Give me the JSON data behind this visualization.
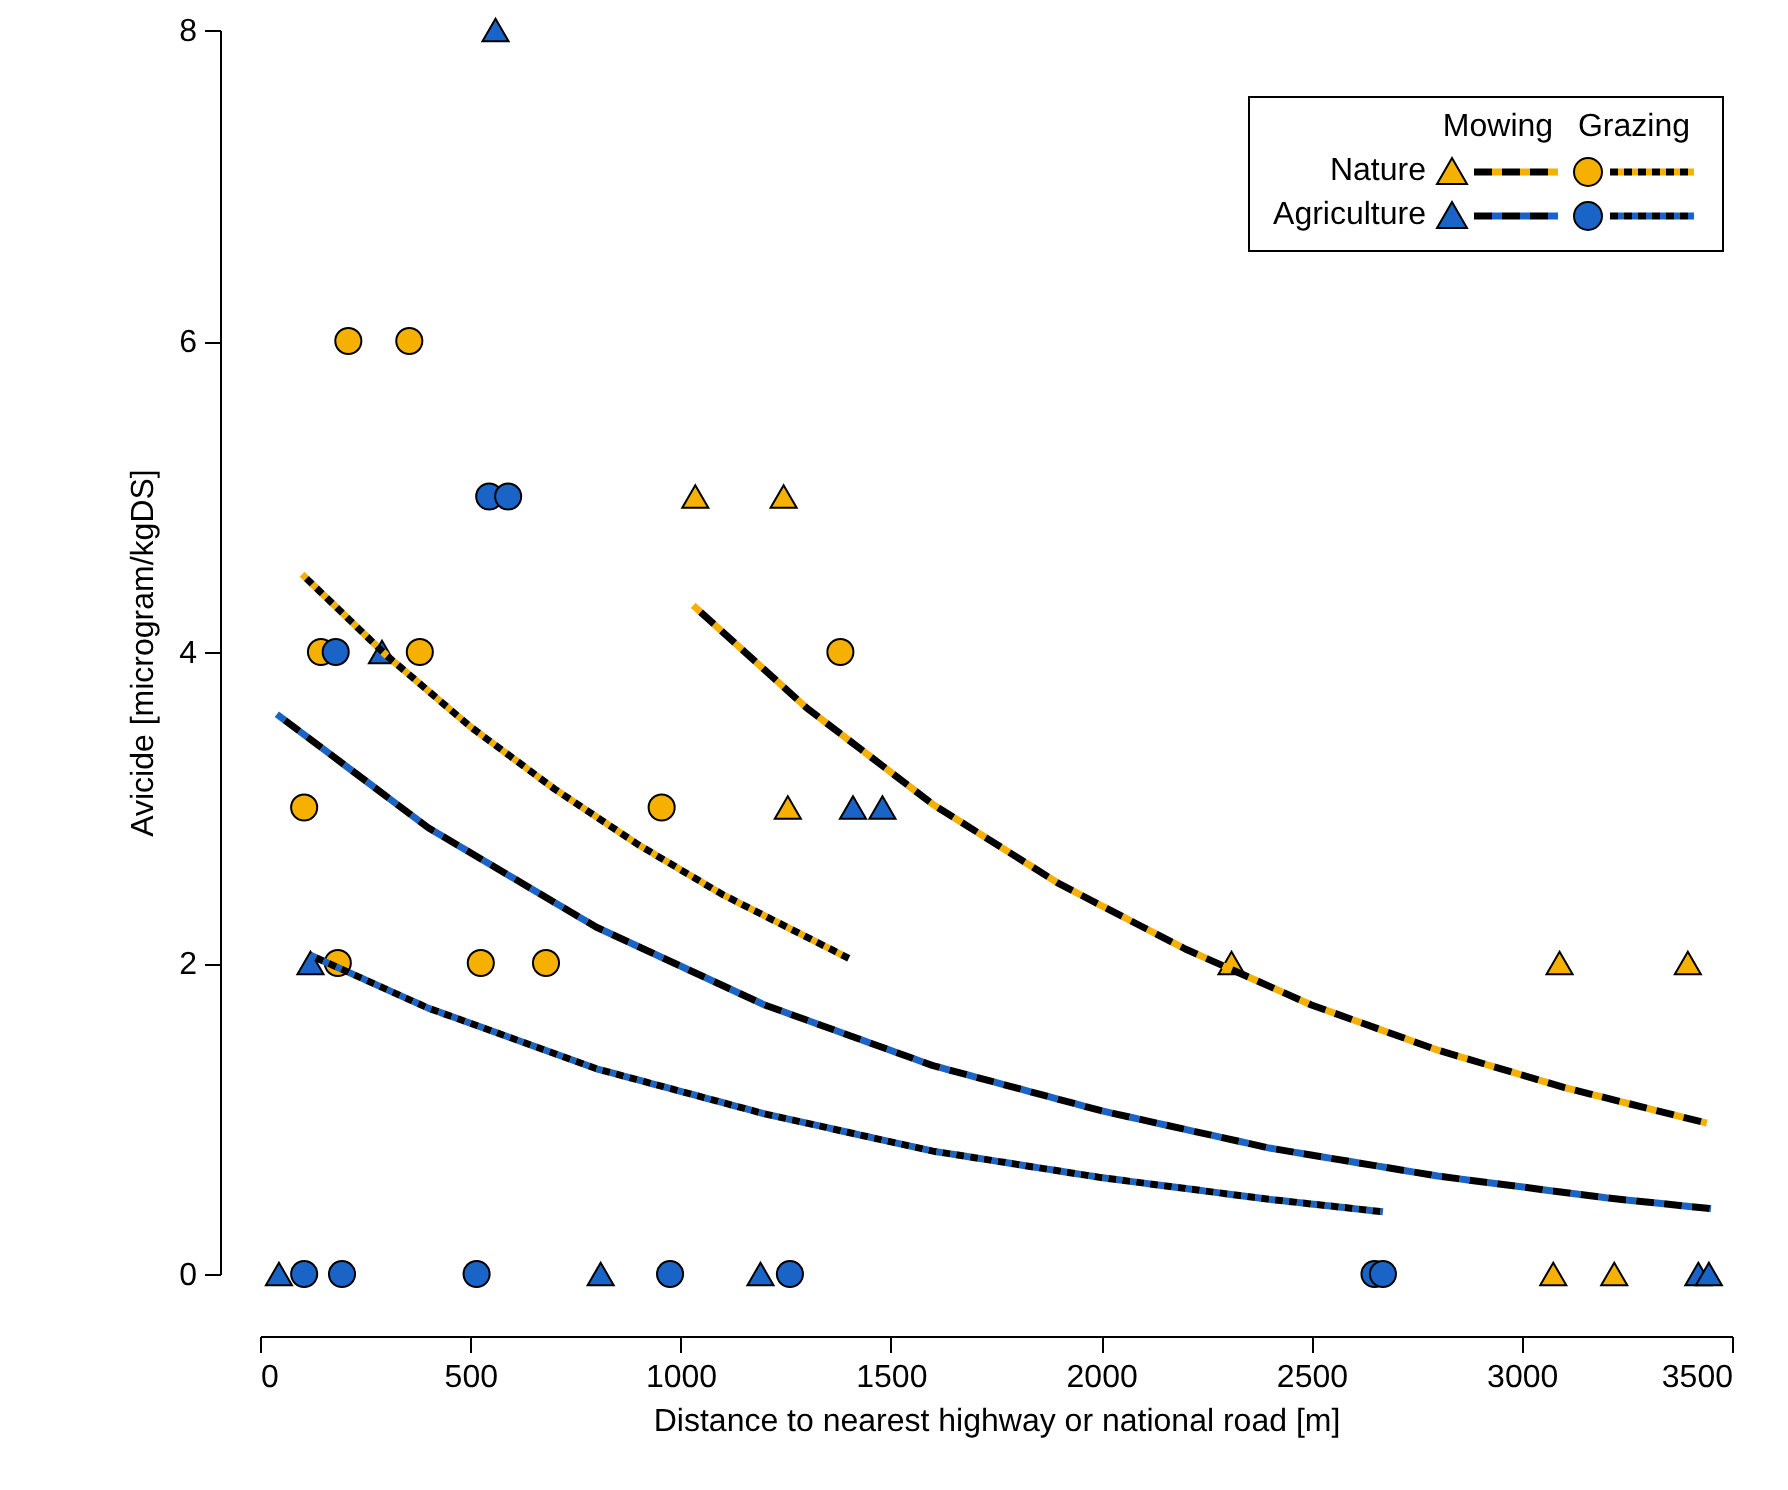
{
  "chart_data": {
    "type": "scatter",
    "xlabel": "Distance to nearest highway or national road [m]",
    "ylabel": "Avicide [microgram/kgDS]",
    "xlim": [
      0,
      3500
    ],
    "xticks": [
      0,
      500,
      {
        "value": 1000,
        "label": "1000"
      },
      {
        "value": 1500,
        "label": "1500"
      },
      {
        "value": 2000,
        "label": "2000"
      },
      {
        "value": 2500,
        "label": "2500"
      },
      {
        "value": 3000,
        "label": "3000"
      },
      {
        "value": 3500,
        "label": "3500"
      }
    ],
    "ylim": [
      0,
      8
    ],
    "yticks": [
      {
        "value": 0,
        "label": "0"
      },
      {
        "value": 2,
        "label": "2"
      },
      {
        "value": 4,
        "label": "4"
      },
      {
        "value": 6,
        "label": "6"
      },
      {
        "value": 8,
        "label": "8"
      }
    ],
    "grid": false,
    "legend": "top right",
    "annotations": [
      "Mowing",
      "Grazing"
    ],
    "series": [
      {
        "name": "Nature",
        "type": "scatter",
        "marker": "triangle",
        "color": "#f5b000",
        "x": [
          1035,
          1245,
          1255,
          2310,
          3090,
          3395,
          3075,
          3220
        ],
        "values": [
          5,
          5,
          3,
          2,
          2,
          2,
          0,
          0
        ]
      },
      {
        "type": "scatter",
        "marker": "circle",
        "color": "#f5b000",
        "x": [
          210,
          355,
          145,
          380,
          1380,
          105,
          955,
          185,
          525,
          680
        ],
        "values": [
          6,
          6,
          4,
          4,
          4,
          3,
          3,
          2,
          2,
          2
        ]
      },
      {
        "name": "Agriculture",
        "type": "scatter",
        "marker": "triangle",
        "color": "#1a64c8",
        "x": [
          560,
          290,
          120,
          1410,
          1480,
          45,
          810,
          1190,
          3420,
          3445
        ],
        "values": [
          8,
          4,
          2,
          3,
          3,
          0,
          0,
          0,
          0,
          0
        ]
      },
      {
        "type": "scatter",
        "marker": "circle",
        "color": "#1a64c8",
        "x": [
          545,
          590,
          180,
          105,
          195,
          515,
          975,
          1260,
          2650,
          2670
        ],
        "values": [
          5,
          5,
          4,
          0,
          0,
          0,
          0,
          0,
          0,
          0
        ]
      },
      {
        "type": "line",
        "line_style": "dashed",
        "marker": "none",
        "color": "#f5b000",
        "x": [
          1030,
          1300,
          1600,
          1900,
          2200,
          2500,
          2800,
          3100,
          3440
        ],
        "values": [
          4.3,
          3.64,
          3.02,
          2.51,
          2.09,
          1.73,
          1.44,
          1.2,
          0.97
        ]
      },
      {
        "type": "line",
        "line_style": "dotted",
        "marker": "none",
        "color": "#f5b000",
        "x": [
          100,
          300,
          500,
          700,
          900,
          1100,
          1400
        ],
        "values": [
          4.5,
          3.98,
          3.52,
          3.12,
          2.76,
          2.44,
          2.03
        ]
      },
      {
        "type": "line",
        "line_style": "dashed",
        "marker": "none",
        "color": "#1a64c8",
        "x": [
          40,
          400,
          800,
          1200,
          1600,
          2000,
          2400,
          2800,
          3200,
          3450
        ],
        "values": [
          3.6,
          2.87,
          2.23,
          1.73,
          1.34,
          1.05,
          0.81,
          0.63,
          0.49,
          0.42
        ]
      },
      {
        "type": "line",
        "line_style": "dotted",
        "marker": "none",
        "color": "#1a64c8",
        "x": [
          120,
          400,
          800,
          1200,
          1600,
          2000,
          2400,
          2670
        ],
        "values": [
          2.05,
          1.71,
          1.32,
          1.03,
          0.79,
          0.62,
          0.48,
          0.4
        ]
      }
    ]
  }
}
